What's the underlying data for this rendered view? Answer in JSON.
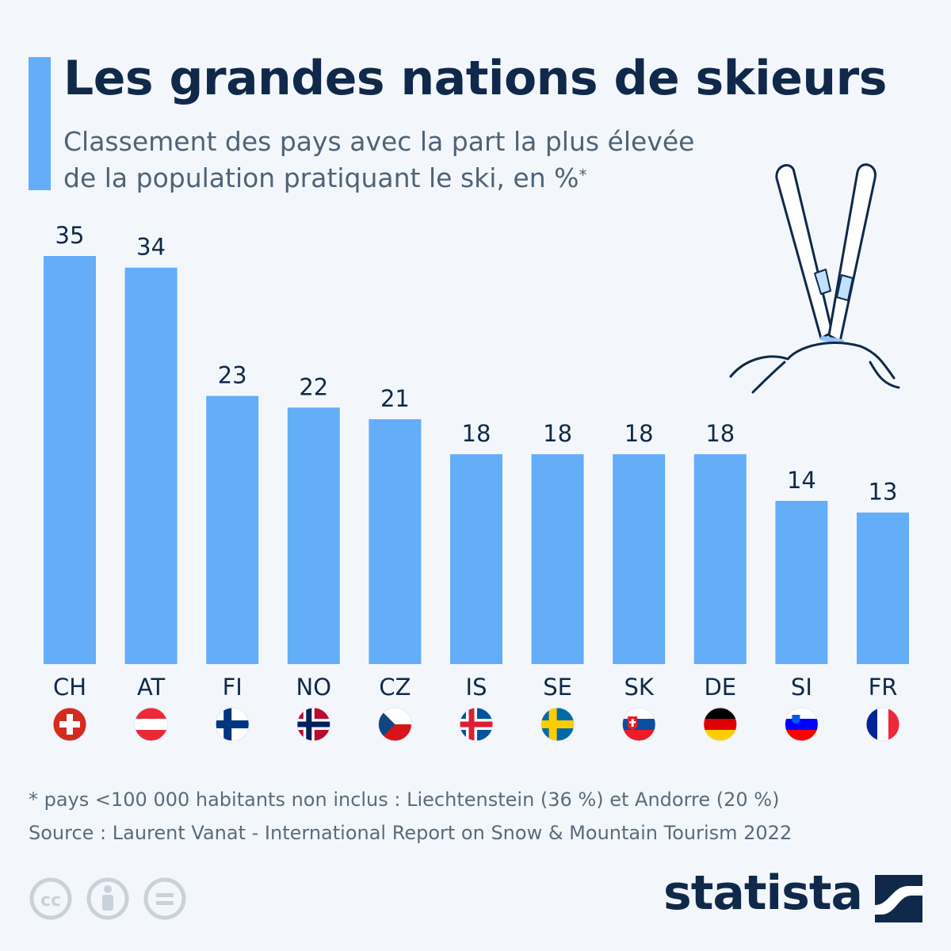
{
  "header": {
    "title": "Les grandes nations de skieurs",
    "subtitle_line1": "Classement des pays avec la part la plus élevée",
    "subtitle_line2": "de la population pratiquant le ski, en %",
    "subtitle_marker": "*"
  },
  "chart_data": {
    "type": "bar",
    "categories": [
      "CH",
      "AT",
      "FI",
      "NO",
      "CZ",
      "IS",
      "SE",
      "SK",
      "DE",
      "SI",
      "FR"
    ],
    "values": [
      35,
      34,
      23,
      22,
      21,
      18,
      18,
      18,
      18,
      14,
      13
    ],
    "title": "Les grandes nations de skieurs",
    "subtitle": "Classement des pays avec la part la plus élevée de la population pratiquant le ski, en %*",
    "xlabel": "",
    "ylabel": "",
    "ylim": [
      0,
      35
    ],
    "grid": false,
    "legend": "none",
    "bar_color": "#64adf9",
    "flags": [
      "flag-switzerland-icon",
      "flag-austria-icon",
      "flag-finland-icon",
      "flag-norway-icon",
      "flag-czechia-icon",
      "flag-iceland-icon",
      "flag-sweden-icon",
      "flag-slovakia-icon",
      "flag-germany-icon",
      "flag-slovenia-icon",
      "flag-france-icon"
    ]
  },
  "footer": {
    "note": "* pays <100 000 habitants non inclus : Liechtenstein (36 %) et Andorre (20 %)",
    "source": "Source : Laurent Vanat - International Report on Snow & Mountain Tourism 2022",
    "brand": "statista",
    "license_icons": [
      "cc-icon",
      "attribution-icon",
      "no-derivatives-icon"
    ]
  },
  "colors": {
    "bar": "#64adf9",
    "title": "#10294a",
    "subtitle": "#4f6378",
    "background": "#f3f7fb"
  }
}
